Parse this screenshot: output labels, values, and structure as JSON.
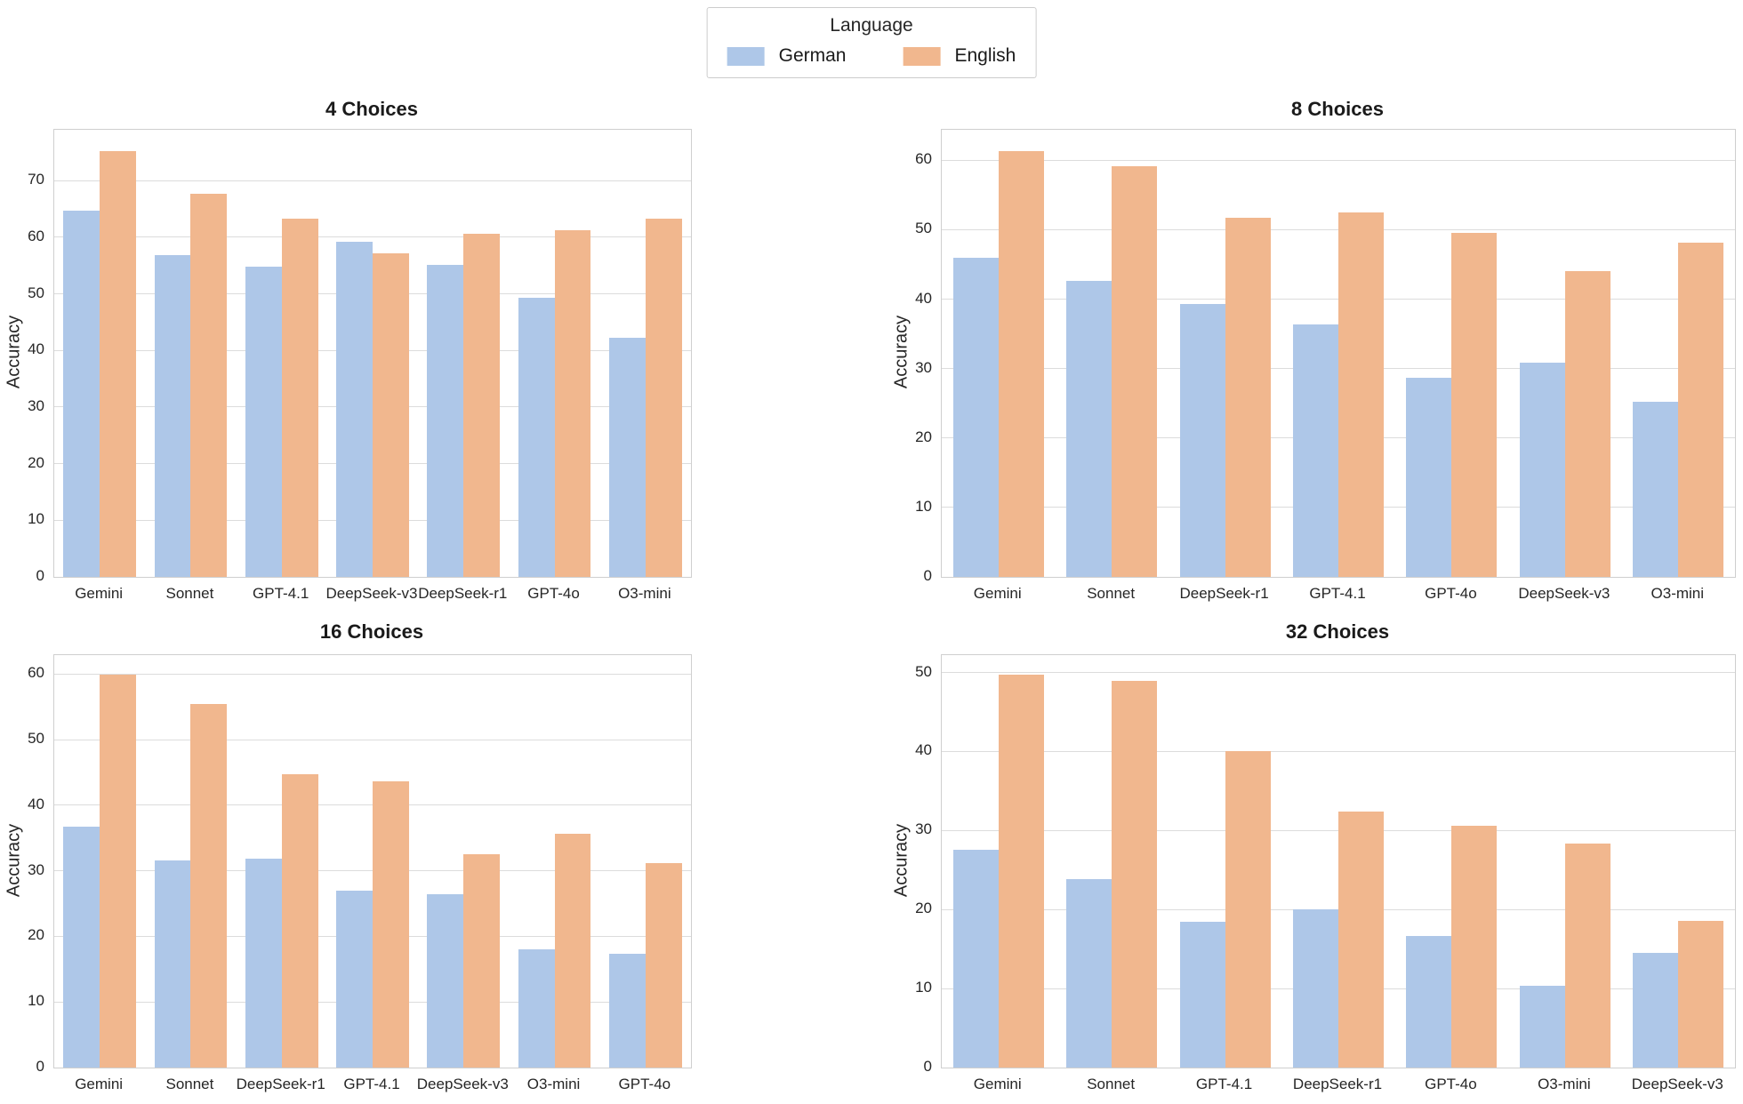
{
  "legend": {
    "title": "Language",
    "entries": [
      {
        "label": "German",
        "color": "#aec7e8"
      },
      {
        "label": "English",
        "color": "#f1b78e"
      }
    ]
  },
  "chart_data": [
    {
      "type": "bar",
      "title": "4 Choices",
      "ylabel": "Accuracy",
      "xlabel": "",
      "grid": true,
      "legend_position": "figure-top-center",
      "categories": [
        "Gemini",
        "Sonnet",
        "GPT-4.1",
        "DeepSeek-v3",
        "DeepSeek-r1",
        "GPT-4o",
        "O3-mini"
      ],
      "series": [
        {
          "name": "German",
          "values": [
            64.7,
            56.8,
            54.8,
            59.2,
            55.2,
            49.3,
            42.2
          ]
        },
        {
          "name": "English",
          "values": [
            75.2,
            67.7,
            63.3,
            57.1,
            60.6,
            61.2,
            63.3
          ]
        }
      ],
      "ylim": [
        0,
        79.0
      ],
      "yticks": [
        0,
        10,
        20,
        30,
        40,
        50,
        60,
        70
      ]
    },
    {
      "type": "bar",
      "title": "8 Choices",
      "ylabel": "Accuracy",
      "xlabel": "",
      "grid": true,
      "legend_position": "figure-top-center",
      "categories": [
        "Gemini",
        "Sonnet",
        "DeepSeek-r1",
        "GPT-4.1",
        "GPT-4o",
        "DeepSeek-v3",
        "O3-mini"
      ],
      "series": [
        {
          "name": "German",
          "values": [
            46.0,
            42.7,
            39.3,
            36.3,
            28.7,
            30.9,
            25.2
          ]
        },
        {
          "name": "English",
          "values": [
            61.3,
            59.1,
            51.7,
            52.5,
            49.6,
            44.1,
            48.1
          ]
        }
      ],
      "ylim": [
        0,
        64.4
      ],
      "yticks": [
        0,
        10,
        20,
        30,
        40,
        50,
        60
      ]
    },
    {
      "type": "bar",
      "title": "16 Choices",
      "ylabel": "Accuracy",
      "xlabel": "",
      "grid": true,
      "legend_position": "figure-top-center",
      "categories": [
        "Gemini",
        "Sonnet",
        "DeepSeek-r1",
        "GPT-4.1",
        "DeepSeek-v3",
        "O3-mini",
        "GPT-4o"
      ],
      "series": [
        {
          "name": "German",
          "values": [
            36.7,
            31.6,
            31.8,
            27.0,
            26.5,
            18.0,
            17.3
          ]
        },
        {
          "name": "English",
          "values": [
            59.9,
            55.4,
            44.8,
            43.7,
            32.5,
            35.7,
            31.2
          ]
        }
      ],
      "ylim": [
        0,
        62.9
      ],
      "yticks": [
        0,
        10,
        20,
        30,
        40,
        50,
        60
      ]
    },
    {
      "type": "bar",
      "title": "32 Choices",
      "ylabel": "Accuracy",
      "xlabel": "",
      "grid": true,
      "legend_position": "figure-top-center",
      "categories": [
        "Gemini",
        "Sonnet",
        "GPT-4.1",
        "DeepSeek-r1",
        "GPT-4o",
        "O3-mini",
        "DeepSeek-v3"
      ],
      "series": [
        {
          "name": "German",
          "values": [
            27.6,
            23.9,
            18.4,
            20.0,
            16.7,
            10.4,
            14.5
          ]
        },
        {
          "name": "English",
          "values": [
            49.7,
            48.9,
            40.1,
            32.4,
            30.6,
            28.4,
            18.6
          ]
        }
      ],
      "ylim": [
        0,
        52.2
      ],
      "yticks": [
        0,
        10,
        20,
        30,
        40,
        50
      ]
    }
  ]
}
